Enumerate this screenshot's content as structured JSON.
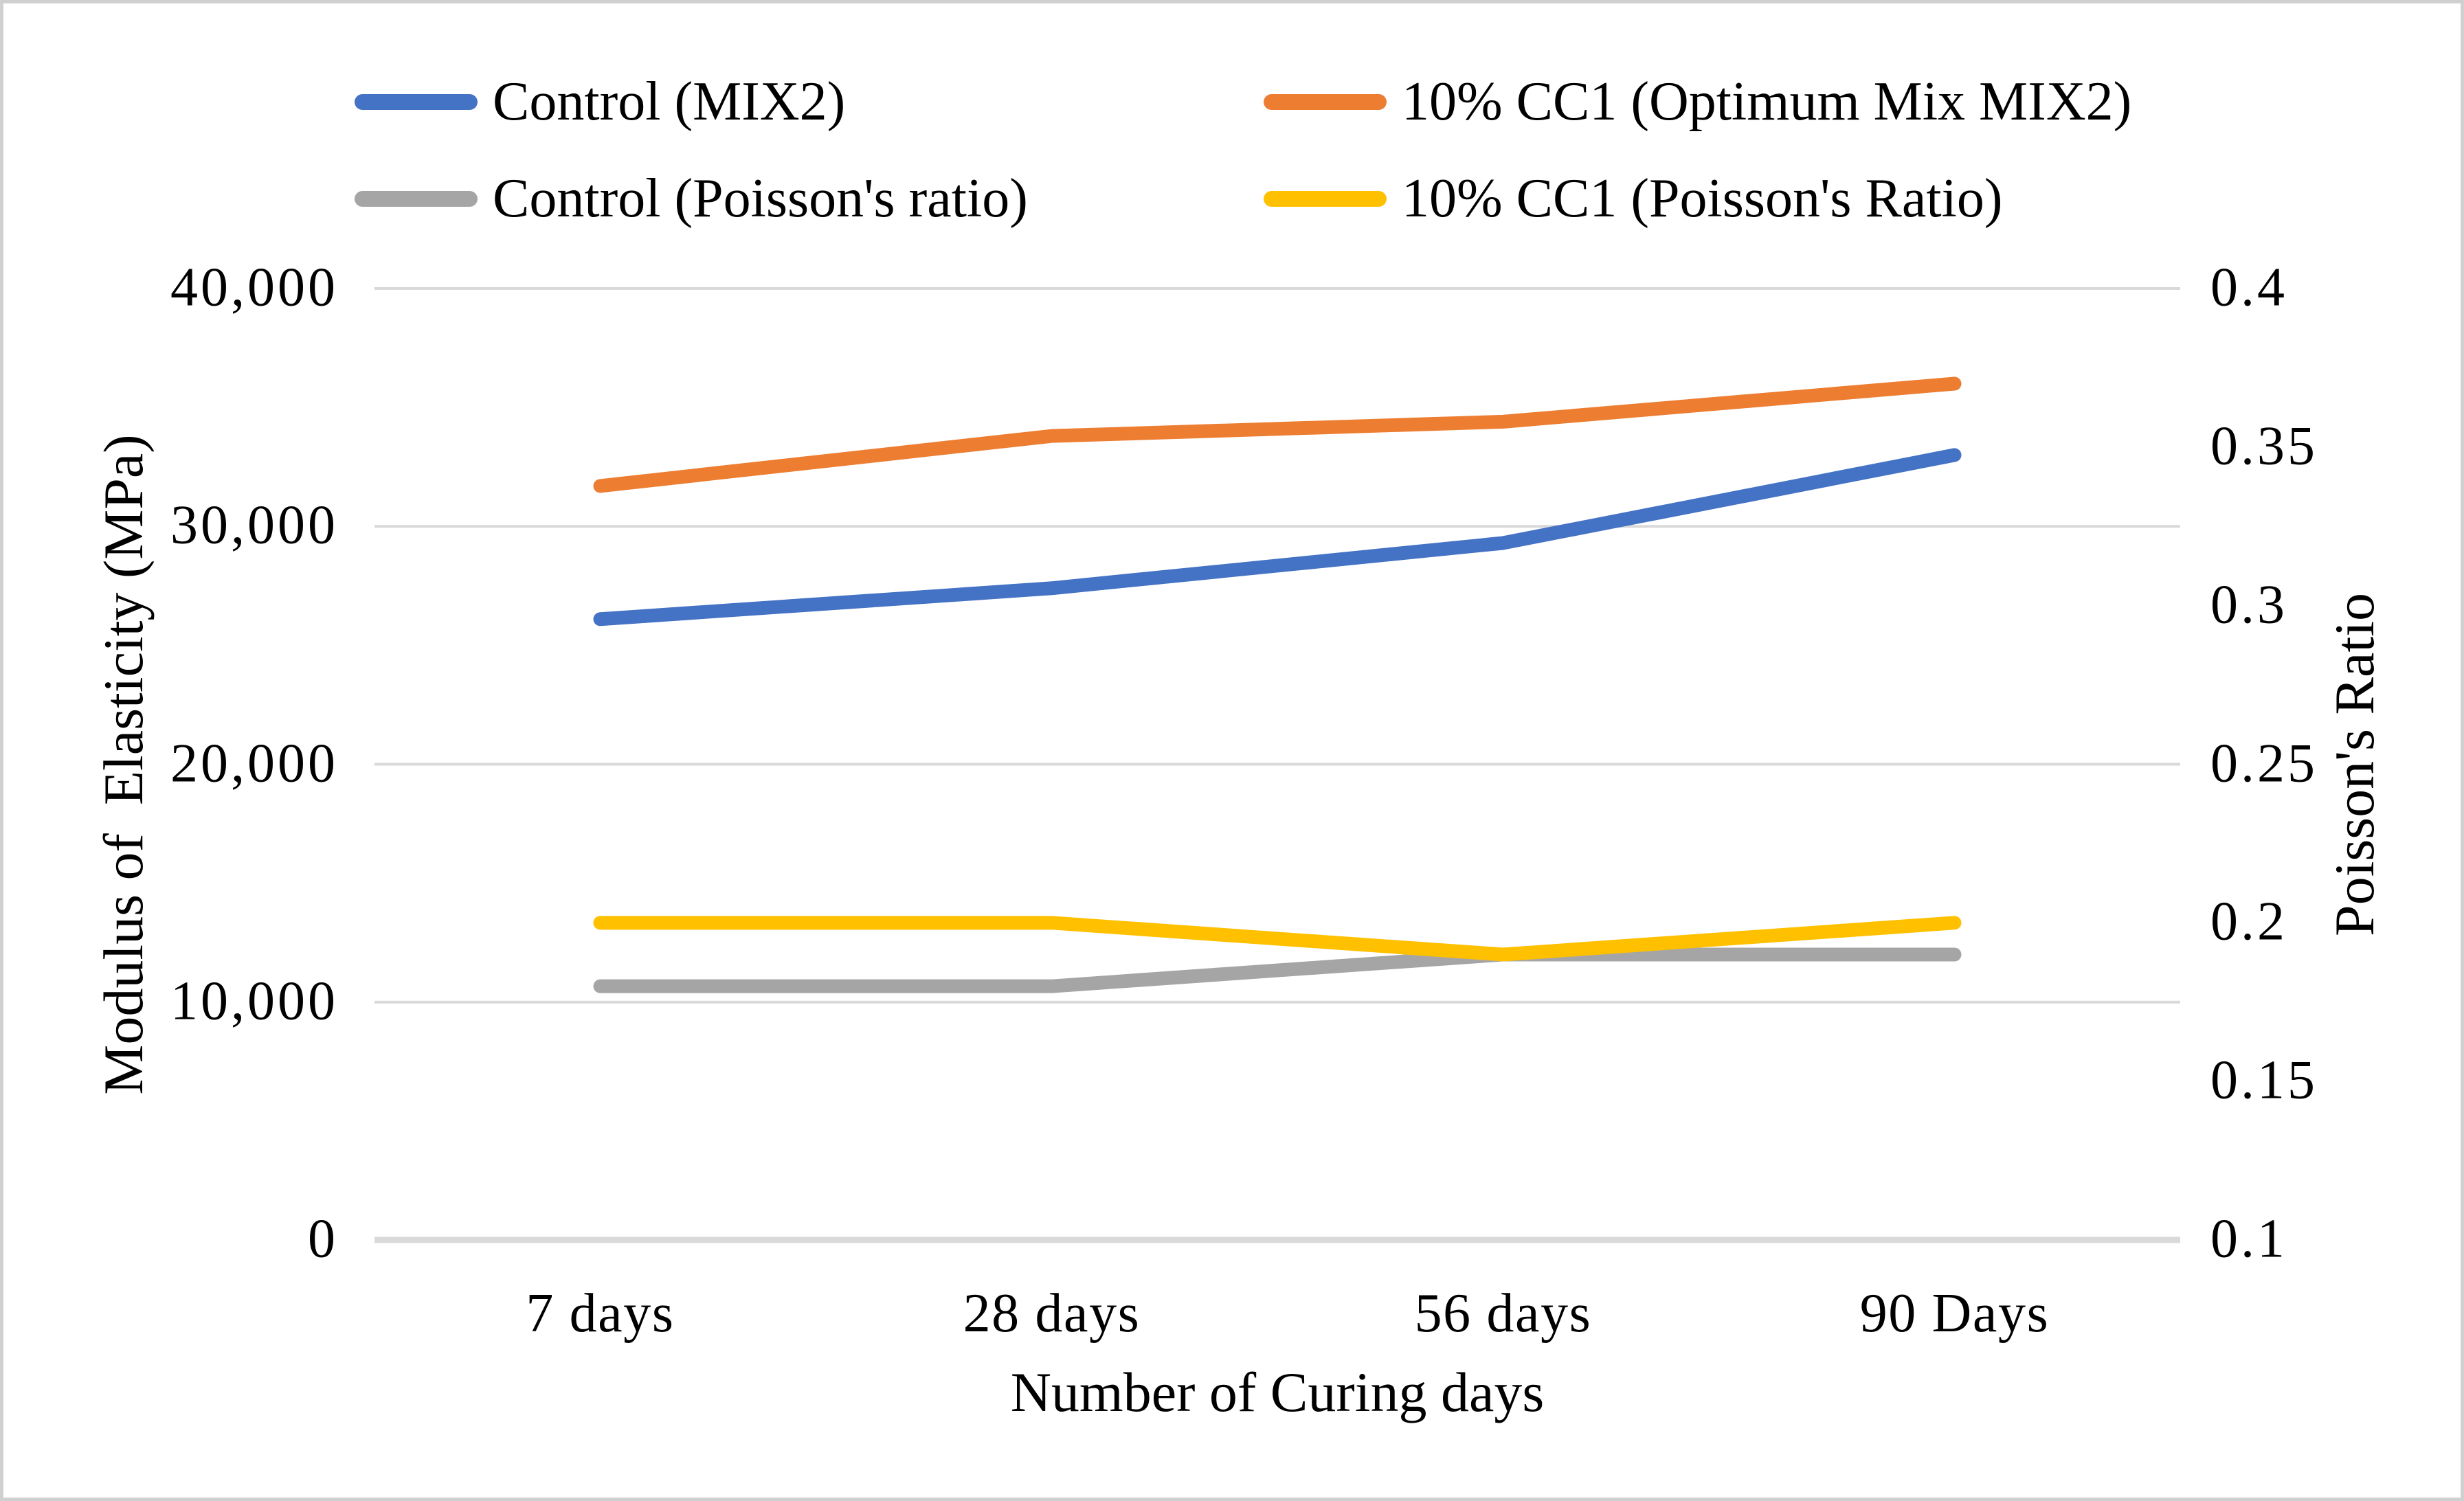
{
  "chart_data": {
    "type": "line",
    "title": "",
    "categories": [
      "7 days",
      "28 days",
      "56 days",
      "90 Days"
    ],
    "xlabel": "Number of Curing days",
    "left_axis": {
      "label": "Modulus of  Elasticity (MPa)",
      "min": 0,
      "max": 40000,
      "ticks": [
        "0",
        "10,000",
        "20,000",
        "30,000",
        "40,000"
      ]
    },
    "right_axis": {
      "label": "Poisson's Ratio",
      "min": 0.1,
      "max": 0.4,
      "ticks": [
        "0.1",
        "0.15",
        "0.2",
        "0.25",
        "0.3",
        "0.35",
        "0.4"
      ]
    },
    "series": [
      {
        "name": "Control (MIX2)",
        "axis": "left",
        "color": "#4472C4",
        "values": [
          26100,
          27400,
          29300,
          33000
        ]
      },
      {
        "name": "10% CC1 (Optimum Mix MIX2)",
        "axis": "left",
        "color": "#ED7D31",
        "values": [
          31700,
          33800,
          34400,
          36000
        ]
      },
      {
        "name": "Control (Poisson's ratio)",
        "axis": "right",
        "color": "#A5A5A5",
        "values": [
          0.18,
          0.18,
          0.19,
          0.19
        ]
      },
      {
        "name": "10% CC1 (Poisson's Ratio)",
        "axis": "right",
        "color": "#FFC000",
        "values": [
          0.2,
          0.2,
          0.19,
          0.2
        ]
      }
    ],
    "grid": true,
    "legend_position": "top",
    "colors": {
      "gridline": "#D9D9D9",
      "axis_line": "#D9D9D9",
      "text": "#000000",
      "frame_border": "#D0D0D0"
    }
  }
}
